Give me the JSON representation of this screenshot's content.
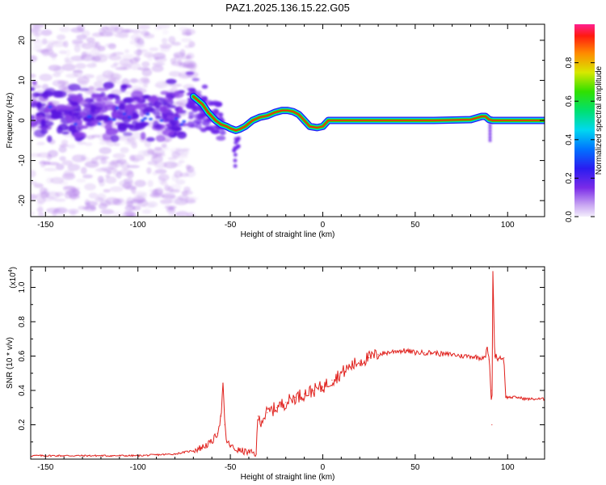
{
  "title": "PAZ1.2025.136.15.22.G05",
  "top_panel": {
    "xlabel": "Height of straight line (km)",
    "ylabel": "Frequency (Hz)",
    "colorbar_label": "Normalized spectral amplitude",
    "colorbar_ticks": [
      "0.0",
      "0.2",
      "0.4",
      "0.6",
      "0.8"
    ],
    "xticks": [
      "-150",
      "-100",
      "-50",
      "0",
      "50",
      "100"
    ],
    "yticks": [
      "20",
      "10",
      "0",
      "-10",
      "-20"
    ]
  },
  "bottom_panel": {
    "xlabel": "Height of straight line (km)",
    "ylabel": "SNR (10 * v/v)",
    "scale_label": "(x10",
    "scale_exp": "4",
    "scale_close": ")",
    "xticks": [
      "-150",
      "-100",
      "-50",
      "0",
      "50",
      "100"
    ],
    "yticks": [
      "0.2",
      "0.4",
      "0.6",
      "0.8",
      "1.0"
    ]
  },
  "chart_data": [
    {
      "type": "heatmap",
      "title": "PAZ1.2025.136.15.22.G05",
      "xlabel": "Height of straight line (km)",
      "ylabel": "Frequency (Hz)",
      "xlim": [
        -158,
        120
      ],
      "ylim": [
        -24,
        24
      ],
      "colorbar": {
        "label": "Normalized spectral amplitude",
        "range": [
          0,
          1
        ],
        "ticks": [
          0.0,
          0.2,
          0.4,
          0.6,
          0.8
        ]
      },
      "ridge_frequency": {
        "x": [
          -70,
          -65,
          -62,
          -58,
          -55,
          -52,
          -50,
          -47,
          -45,
          -42,
          -38,
          -34,
          -30,
          -26,
          -22,
          -19,
          -16,
          -13,
          -10,
          -7,
          -3,
          0,
          3,
          10,
          20,
          40,
          60,
          80,
          86,
          88,
          90,
          92,
          95,
          100,
          110,
          120
        ],
        "y": [
          6.0,
          4.0,
          2.0,
          0.0,
          -1.0,
          -1.5,
          -2.0,
          -2.5,
          -2.2,
          -1.5,
          0.0,
          0.8,
          1.2,
          2.0,
          2.5,
          2.5,
          2.2,
          1.5,
          0.0,
          -1.5,
          -1.8,
          -1.5,
          0.0,
          0.0,
          0.0,
          0.0,
          0.0,
          0.2,
          1.0,
          1.0,
          0.2,
          0.0,
          0.0,
          0.0,
          0.0,
          0.0
        ]
      },
      "notes": "Noisy broadband energy for heights below about -70 km, concentrated near 0 to 5 Hz"
    },
    {
      "type": "line",
      "xlabel": "Height of straight line (km)",
      "ylabel": "SNR (10 * v/v)",
      "y_multiplier": "x10^4",
      "xlim": [
        -158,
        120
      ],
      "ylim": [
        0.0,
        1.12
      ],
      "series": [
        {
          "color": "#e0201c",
          "x": [
            -158,
            -140,
            -120,
            -100,
            -90,
            -80,
            -75,
            -70,
            -65,
            -60,
            -57,
            -55,
            -54,
            -53,
            -52,
            -50,
            -48,
            -45,
            -40,
            -36,
            -35,
            -34,
            -30,
            -25,
            -20,
            -15,
            -10,
            -5,
            0,
            5,
            10,
            15,
            20,
            25,
            30,
            35,
            40,
            45,
            50,
            55,
            60,
            65,
            70,
            75,
            80,
            85,
            88,
            89,
            90,
            91,
            91.5,
            92,
            93,
            94,
            95,
            96,
            97,
            98,
            99,
            100,
            105,
            110,
            115,
            120
          ],
          "y": [
            0.02,
            0.02,
            0.02,
            0.02,
            0.025,
            0.03,
            0.04,
            0.05,
            0.07,
            0.1,
            0.15,
            0.25,
            0.44,
            0.2,
            0.1,
            0.08,
            0.06,
            0.05,
            0.04,
            0.03,
            0.25,
            0.22,
            0.27,
            0.3,
            0.33,
            0.36,
            0.38,
            0.4,
            0.42,
            0.46,
            0.5,
            0.54,
            0.57,
            0.59,
            0.61,
            0.62,
            0.63,
            0.63,
            0.62,
            0.62,
            0.62,
            0.61,
            0.61,
            0.6,
            0.6,
            0.59,
            0.6,
            0.65,
            0.58,
            0.4,
            0.2,
            1.12,
            0.6,
            0.6,
            0.58,
            0.6,
            0.58,
            0.59,
            0.36,
            0.36,
            0.36,
            0.35,
            0.35,
            0.35
          ]
        }
      ]
    }
  ]
}
